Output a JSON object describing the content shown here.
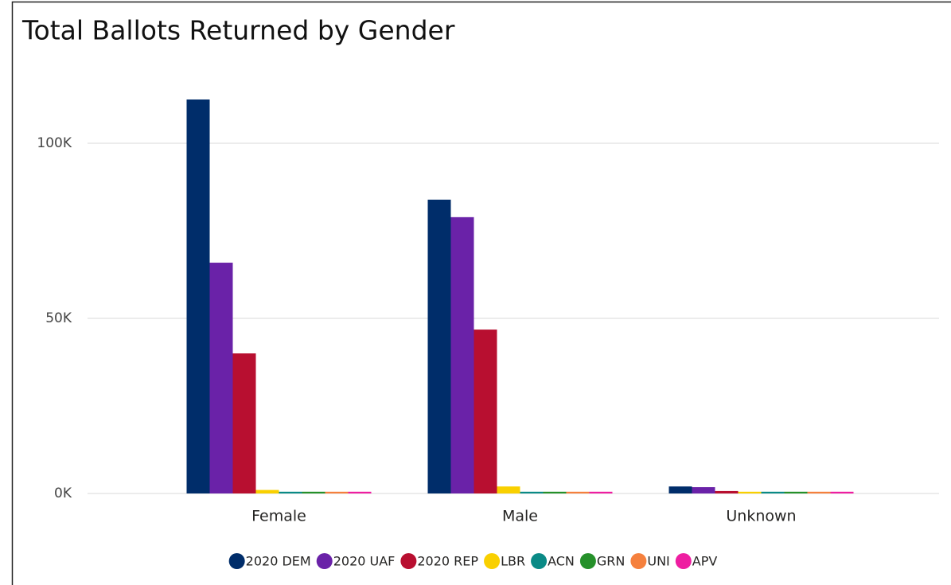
{
  "chart_data": {
    "type": "bar",
    "title": "Total Ballots Returned by Gender",
    "categories": [
      "Female",
      "Male",
      "Unknown"
    ],
    "series": [
      {
        "name": "2020 DEM",
        "color": "#002d6a",
        "values": [
          112500,
          83900,
          2000
        ]
      },
      {
        "name": "2020 UAF",
        "color": "#6a22a8",
        "values": [
          65900,
          78900,
          1800
        ]
      },
      {
        "name": "2020 REP",
        "color": "#b80f30",
        "values": [
          40000,
          46800,
          700
        ]
      },
      {
        "name": "LBR",
        "color": "#f9d000",
        "values": [
          1000,
          2000,
          500
        ]
      },
      {
        "name": "ACN",
        "color": "#0a8a86",
        "values": [
          500,
          500,
          500
        ]
      },
      {
        "name": "GRN",
        "color": "#25902a",
        "values": [
          500,
          500,
          500
        ]
      },
      {
        "name": "UNI",
        "color": "#f5803d",
        "values": [
          500,
          500,
          500
        ]
      },
      {
        "name": "APV",
        "color": "#ee1ea1",
        "values": [
          500,
          500,
          500
        ]
      }
    ],
    "ylim": [
      0,
      120000
    ],
    "yticks": [
      {
        "value": 0,
        "label": "0K"
      },
      {
        "value": 50000,
        "label": "50K"
      },
      {
        "value": 100000,
        "label": "100K"
      }
    ],
    "grid": true,
    "legend": "bottom"
  }
}
